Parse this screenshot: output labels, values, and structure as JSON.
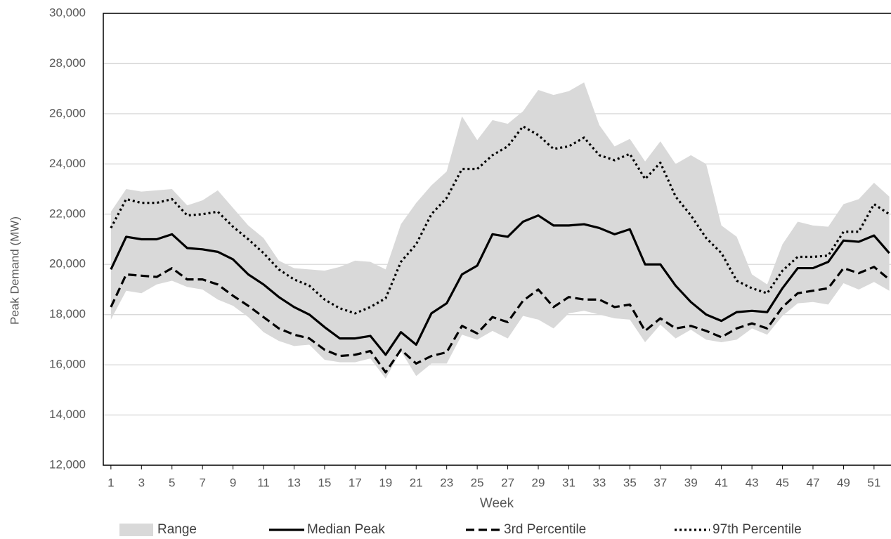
{
  "chart_data": {
    "type": "line",
    "x_label": "Week",
    "y_label": "Peak Demand (MW)",
    "x": [
      1,
      2,
      3,
      4,
      5,
      6,
      7,
      8,
      9,
      10,
      11,
      12,
      13,
      14,
      15,
      16,
      17,
      18,
      19,
      20,
      21,
      22,
      23,
      24,
      25,
      26,
      27,
      28,
      29,
      30,
      31,
      32,
      33,
      34,
      35,
      36,
      37,
      38,
      39,
      40,
      41,
      42,
      43,
      44,
      45,
      46,
      47,
      48,
      49,
      50,
      51,
      52
    ],
    "xlim": [
      0.5,
      52.5
    ],
    "xticks": [
      1,
      3,
      5,
      7,
      9,
      11,
      13,
      15,
      17,
      19,
      21,
      23,
      25,
      27,
      29,
      31,
      33,
      35,
      37,
      39,
      41,
      43,
      45,
      47,
      49,
      51
    ],
    "ylim": [
      12000,
      30000
    ],
    "yticks": [
      {
        "value": 12000,
        "label": "12,000"
      },
      {
        "value": 14000,
        "label": "14,000"
      },
      {
        "value": 16000,
        "label": "16,000"
      },
      {
        "value": 18000,
        "label": "18,000"
      },
      {
        "value": 20000,
        "label": "20,000"
      },
      {
        "value": 22000,
        "label": "22,000"
      },
      {
        "value": 24000,
        "label": "24,000"
      },
      {
        "value": 26000,
        "label": "26,000"
      },
      {
        "value": 28000,
        "label": "28,000"
      },
      {
        "value": 30000,
        "label": "30,000"
      }
    ],
    "grid": true,
    "legend": "bottom",
    "series": [
      {
        "name": "Range",
        "kind": "band",
        "color": "#d9d9d9",
        "low": [
          17800,
          18950,
          18850,
          19200,
          19350,
          19100,
          19000,
          18600,
          18350,
          17900,
          17300,
          16950,
          16750,
          16800,
          16200,
          16100,
          16100,
          16250,
          15450,
          16550,
          15550,
          16050,
          16050,
          17200,
          17000,
          17350,
          17050,
          17950,
          17800,
          17450,
          18050,
          18150,
          18000,
          17850,
          17800,
          16900,
          17600,
          17050,
          17400,
          17000,
          16900,
          17000,
          17450,
          17200,
          17950,
          18450,
          18500,
          18400,
          19250,
          19000,
          19300,
          18950
        ],
        "high": [
          22100,
          23000,
          22900,
          22950,
          23000,
          22350,
          22550,
          22950,
          22250,
          21550,
          21050,
          20150,
          19850,
          19800,
          19750,
          19900,
          20150,
          20100,
          19800,
          21600,
          22450,
          23150,
          23700,
          25900,
          24950,
          25750,
          25600,
          26100,
          26950,
          26750,
          26900,
          27250,
          25550,
          24700,
          25000,
          24100,
          24900,
          24000,
          24350,
          24000,
          21550,
          21100,
          19600,
          19200,
          20800,
          21700,
          21550,
          21500,
          22400,
          22600,
          23250,
          22700
        ]
      },
      {
        "name": "Median Peak",
        "kind": "line",
        "dash": "solid",
        "color": "#000000",
        "values": [
          19800,
          21100,
          21000,
          21000,
          21200,
          20650,
          20600,
          20500,
          20200,
          19600,
          19200,
          18700,
          18300,
          18000,
          17500,
          17050,
          17050,
          17150,
          16400,
          17300,
          16800,
          18050,
          18450,
          19600,
          19950,
          21200,
          21100,
          21700,
          21950,
          21550,
          21550,
          21600,
          21450,
          21200,
          21400,
          20000,
          20000,
          19150,
          18500,
          18000,
          17750,
          18100,
          18150,
          18100,
          19050,
          19850,
          19850,
          20100,
          20950,
          20900,
          21150,
          20450
        ]
      },
      {
        "name": "3rd Percentile",
        "kind": "line",
        "dash": "dashed",
        "color": "#000000",
        "values": [
          18300,
          19600,
          19550,
          19500,
          19850,
          19400,
          19400,
          19200,
          18750,
          18350,
          17900,
          17450,
          17200,
          17050,
          16600,
          16350,
          16400,
          16550,
          15700,
          16600,
          16050,
          16350,
          16500,
          17550,
          17250,
          17900,
          17700,
          18550,
          19000,
          18300,
          18700,
          18600,
          18600,
          18300,
          18400,
          17350,
          17850,
          17450,
          17550,
          17350,
          17100,
          17450,
          17650,
          17450,
          18300,
          18850,
          18950,
          19050,
          19850,
          19650,
          19900,
          19400
        ]
      },
      {
        "name": "97th Percentile",
        "kind": "line",
        "dash": "dotted",
        "color": "#000000",
        "values": [
          21450,
          22600,
          22450,
          22450,
          22600,
          21950,
          22000,
          22100,
          21500,
          21000,
          20450,
          19800,
          19400,
          19150,
          18600,
          18250,
          18050,
          18300,
          18650,
          20100,
          20800,
          22000,
          22650,
          23800,
          23800,
          24350,
          24700,
          25500,
          25150,
          24600,
          24700,
          25050,
          24350,
          24150,
          24400,
          23400,
          24050,
          22700,
          21950,
          21050,
          20450,
          19350,
          19050,
          18850,
          19750,
          20300,
          20300,
          20350,
          21300,
          21300,
          22400,
          22000
        ]
      }
    ]
  }
}
